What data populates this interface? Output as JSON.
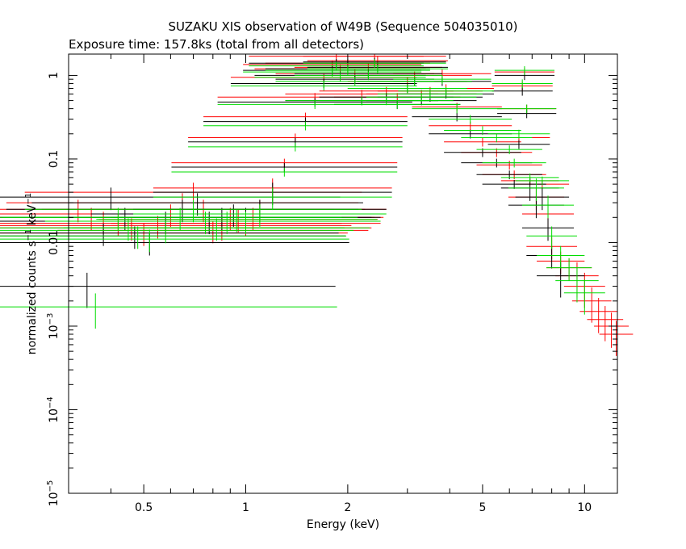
{
  "chart_data": {
    "type": "scatter",
    "title": "SUZAKU XIS observation of W49B (Sequence 504035010)",
    "subtitle": "Exposure time: 157.8ks (total from all detectors)",
    "xlabel": "Energy (keV)",
    "ylabel": {
      "text": "normalized counts s",
      "exp1": "−1",
      "mid": " keV",
      "exp2": "−1"
    },
    "xscale": "log",
    "yscale": "log",
    "xlim": [
      0.3,
      12.5
    ],
    "ylim": [
      1e-05,
      1.8
    ],
    "x_ticks": [
      {
        "value": 0.5,
        "label": "0.5"
      },
      {
        "value": 1,
        "label": "1"
      },
      {
        "value": 2,
        "label": "2"
      },
      {
        "value": 5,
        "label": "5"
      },
      {
        "value": 10,
        "label": "10"
      }
    ],
    "y_ticks": [
      {
        "value": 1,
        "label": "1"
      },
      {
        "value": 0.1,
        "label": "0.1"
      },
      {
        "value": 0.01,
        "label": "0.01"
      },
      {
        "value": 0.001,
        "base": "10",
        "exp": "−3"
      },
      {
        "value": 0.0001,
        "base": "10",
        "exp": "−4"
      },
      {
        "value": 1e-05,
        "base": "10",
        "exp": "−5"
      }
    ],
    "grid": false,
    "legend": "none",
    "series": [
      {
        "color": "#ff0000",
        "x": [
          0.3,
          0.32,
          0.35,
          0.38,
          0.42,
          0.46,
          0.5,
          0.55,
          0.6,
          0.65,
          0.7,
          0.75,
          0.8,
          0.85,
          0.9,
          0.95,
          1.0,
          1.05,
          1.1,
          1.2,
          1.3,
          1.4,
          1.5,
          1.6,
          1.7,
          1.8,
          1.85,
          1.9,
          2.0,
          2.1,
          2.2,
          2.3,
          2.4,
          2.45,
          2.6,
          2.8,
          3.0,
          3.15,
          3.3,
          3.5,
          3.8,
          3.9,
          4.2,
          4.6,
          5.0,
          5.5,
          6.0,
          6.2,
          6.4,
          6.55,
          6.65,
          6.75,
          6.9,
          7.2,
          7.5,
          7.8,
          8.0,
          8.5,
          9.0,
          9.5,
          10.0,
          10.5,
          11.0,
          11.5,
          12.0,
          12.4
        ],
        "y": [
          0.022,
          0.025,
          0.02,
          0.018,
          0.017,
          0.015,
          0.013,
          0.016,
          0.022,
          0.03,
          0.04,
          0.025,
          0.014,
          0.015,
          0.02,
          0.019,
          0.017,
          0.02,
          0.025,
          0.045,
          0.09,
          0.18,
          0.32,
          0.55,
          0.95,
          1.35,
          1.7,
          1.2,
          1.4,
          1.05,
          0.6,
          1.25,
          1.7,
          1.5,
          0.65,
          0.55,
          0.85,
          1.0,
          0.6,
          0.65,
          1.05,
          0.7,
          0.42,
          0.25,
          0.16,
          0.12,
          0.085,
          0.065,
          0.18,
          0.75,
          1.1,
          0.4,
          0.055,
          0.035,
          0.05,
          0.022,
          0.009,
          0.006,
          0.005,
          0.004,
          0.003,
          0.002,
          0.0015,
          0.0012,
          0.001,
          0.0008
        ]
      },
      {
        "color": "#000000",
        "x": [
          0.34,
          0.38,
          0.4,
          0.44,
          0.47,
          0.52,
          0.58,
          0.65,
          0.72,
          0.78,
          0.85,
          0.92,
          1.0,
          1.1,
          1.2,
          1.3,
          1.4,
          1.5,
          1.6,
          1.7,
          1.8,
          1.85,
          1.9,
          2.0,
          2.1,
          2.2,
          2.3,
          2.4,
          2.45,
          2.6,
          2.8,
          3.0,
          3.15,
          3.3,
          3.5,
          3.8,
          3.9,
          4.2,
          4.6,
          5.0,
          5.5,
          6.0,
          6.2,
          6.4,
          6.55,
          6.65,
          6.75,
          6.9,
          7.2,
          7.5,
          7.8,
          8.0,
          8.5
        ],
        "y": [
          0.003,
          0.013,
          0.035,
          0.02,
          0.012,
          0.01,
          0.018,
          0.025,
          0.03,
          0.018,
          0.02,
          0.022,
          0.02,
          0.025,
          0.04,
          0.08,
          0.16,
          0.28,
          0.48,
          0.8,
          1.15,
          1.4,
          1.0,
          1.2,
          0.9,
          0.5,
          1.05,
          1.45,
          1.25,
          0.55,
          0.45,
          0.7,
          0.85,
          0.5,
          0.55,
          0.85,
          0.6,
          0.32,
          0.2,
          0.12,
          0.09,
          0.065,
          0.05,
          0.15,
          0.65,
          1.0,
          0.35,
          0.045,
          0.028,
          0.035,
          0.015,
          0.007,
          0.004
        ]
      },
      {
        "color": "#00dd00",
        "x": [
          0.36,
          0.42,
          0.45,
          0.48,
          0.52,
          0.58,
          0.64,
          0.7,
          0.76,
          0.82,
          0.88,
          0.94,
          1.0,
          1.1,
          1.2,
          1.3,
          1.4,
          1.5,
          1.6,
          1.7,
          1.8,
          1.85,
          1.9,
          2.0,
          2.1,
          2.2,
          2.3,
          2.4,
          2.45,
          2.6,
          2.8,
          3.0,
          3.15,
          3.3,
          3.5,
          3.8,
          3.9,
          4.2,
          4.6,
          5.0,
          5.5,
          6.0,
          6.2,
          6.4,
          6.55,
          6.65,
          6.75,
          6.9,
          7.2,
          7.5,
          7.8,
          8.0,
          8.5,
          9.0,
          9.5,
          10.0
        ],
        "y": [
          0.0017,
          0.02,
          0.015,
          0.012,
          0.011,
          0.014,
          0.02,
          0.025,
          0.018,
          0.015,
          0.018,
          0.019,
          0.018,
          0.022,
          0.035,
          0.07,
          0.14,
          0.25,
          0.45,
          0.75,
          1.1,
          1.3,
          0.95,
          1.15,
          0.85,
          0.5,
          1.0,
          1.4,
          1.2,
          0.5,
          0.45,
          0.7,
          0.85,
          0.55,
          0.6,
          0.9,
          0.65,
          0.4,
          0.3,
          0.22,
          0.18,
          0.13,
          0.09,
          0.2,
          0.8,
          1.15,
          0.4,
          0.06,
          0.045,
          0.055,
          0.028,
          0.012,
          0.007,
          0.005,
          0.0035,
          0.0025
        ]
      }
    ]
  }
}
